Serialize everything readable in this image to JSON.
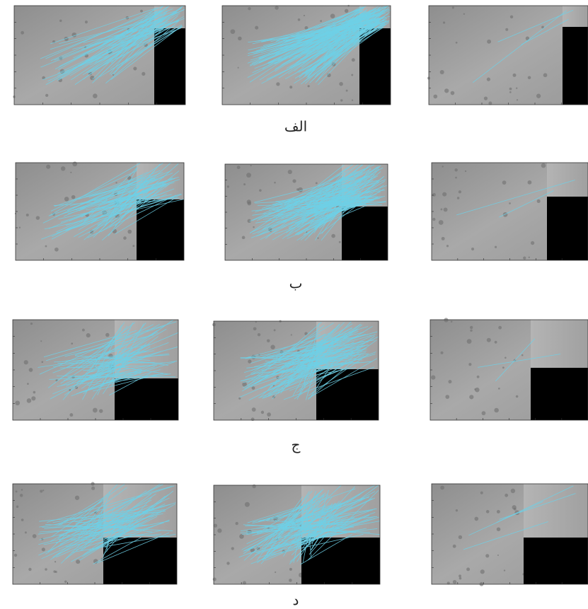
{
  "captions": [
    "الف",
    "ب",
    "ج",
    "د"
  ]
}
